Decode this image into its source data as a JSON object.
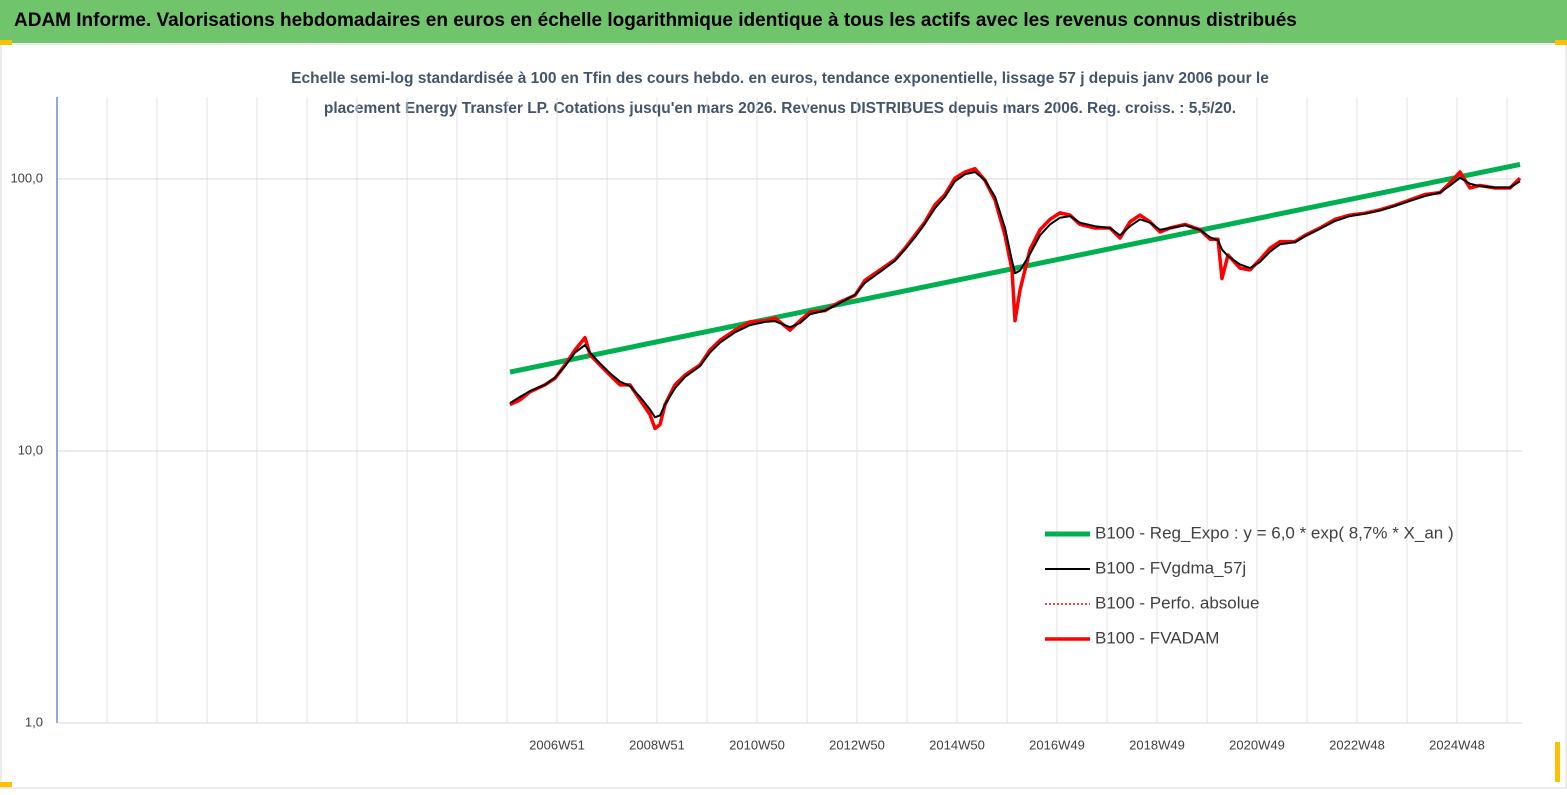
{
  "page_title": "ADAM Informe. Valorisations hebdomadaires en euros en échelle logarithmique identique à tous les actifs avec les revenus connus distribués",
  "chart_data": {
    "type": "line",
    "title": [
      "Echelle semi-log standardisée à 100 en Tfin des cours hebdo. en euros, tendance exponentielle, lissage 57 j depuis janv 2006 pour le",
      "placement Energy Transfer LP. Cotations jusqu'en mars 2026. Revenus DISTRIBUES depuis mars 2006. Reg. croiss. : 5,5/20."
    ],
    "log_y": true,
    "grid": true,
    "legend_position": "lower right",
    "xlim": [
      1996.97,
      2026.27
    ],
    "ylim": [
      1,
      200
    ],
    "yticks": [
      {
        "value": 1,
        "label": "1,0"
      },
      {
        "value": 10,
        "label": "10,0"
      },
      {
        "value": 100,
        "label": "100,0"
      }
    ],
    "xticks": [
      {
        "value": 2006.97,
        "label": "2006W51"
      },
      {
        "value": 2008.97,
        "label": "2008W51"
      },
      {
        "value": 2010.97,
        "label": "2010W50"
      },
      {
        "value": 2012.97,
        "label": "2012W50"
      },
      {
        "value": 2014.97,
        "label": "2014W50"
      },
      {
        "value": 2016.97,
        "label": "2016W49"
      },
      {
        "value": 2018.97,
        "label": "2018W49"
      },
      {
        "value": 2020.97,
        "label": "2020W49"
      },
      {
        "value": 2022.97,
        "label": "2022W48"
      },
      {
        "value": 2024.97,
        "label": "2024W48"
      }
    ],
    "x": [
      2006.03,
      2006.23,
      2006.43,
      2006.73,
      2006.93,
      2007.13,
      2007.33,
      2007.53,
      2007.63,
      2007.83,
      2008.03,
      2008.23,
      2008.43,
      2008.63,
      2008.83,
      2008.93,
      2009.03,
      2009.13,
      2009.33,
      2009.53,
      2009.83,
      2010.03,
      2010.23,
      2010.53,
      2010.83,
      2011.13,
      2011.33,
      2011.63,
      2011.83,
      2012.03,
      2012.33,
      2012.63,
      2012.93,
      2013.13,
      2013.43,
      2013.73,
      2013.93,
      2014.13,
      2014.33,
      2014.53,
      2014.73,
      2014.93,
      2015.13,
      2015.33,
      2015.53,
      2015.73,
      2015.93,
      2016.07,
      2016.13,
      2016.23,
      2016.43,
      2016.63,
      2016.83,
      2017.03,
      2017.23,
      2017.43,
      2017.73,
      2018.03,
      2018.23,
      2018.43,
      2018.63,
      2018.83,
      2019.03,
      2019.23,
      2019.53,
      2019.83,
      2020.03,
      2020.19,
      2020.27,
      2020.39,
      2020.63,
      2020.83,
      2021.03,
      2021.23,
      2021.43,
      2021.73,
      2021.93,
      2022.23,
      2022.53,
      2022.83,
      2023.13,
      2023.43,
      2023.73,
      2024.03,
      2024.33,
      2024.63,
      2024.83,
      2025.03,
      2025.23,
      2025.43,
      2025.73,
      2026.03,
      2026.23
    ],
    "series": [
      {
        "name": "B100 - Reg_Expo : y = 6,0 *  exp( 8,7% *  X_an )",
        "color": "#00b050",
        "width": 5,
        "style": "solid",
        "x": [
          2006.03,
          2026.23
        ],
        "values": [
          19.5,
          113
        ]
      },
      {
        "name": "B100 - FVgdma_57j",
        "color": "#000000",
        "width": 2,
        "style": "solid",
        "values": [
          15.0,
          15.8,
          16.6,
          17.5,
          18.6,
          20.5,
          23.0,
          24.5,
          23.0,
          21.0,
          19.3,
          18.0,
          17.3,
          15.8,
          14.2,
          13.3,
          13.5,
          14.8,
          17.0,
          18.7,
          20.5,
          23.0,
          25.0,
          27.3,
          29.0,
          29.8,
          30.0,
          28.5,
          29.5,
          31.8,
          32.8,
          35.0,
          37.5,
          41.5,
          45.5,
          50.0,
          55.0,
          61.0,
          68.5,
          78.0,
          86.0,
          98.0,
          104,
          106,
          99.0,
          86.0,
          66.0,
          50.0,
          45.0,
          46.0,
          53.0,
          62.0,
          68.0,
          72.0,
          73.0,
          69.0,
          67.0,
          66.0,
          62.0,
          67.0,
          71.0,
          69.0,
          65.0,
          66.0,
          67.5,
          65.0,
          61.0,
          59.5,
          55.0,
          52.0,
          48.5,
          47.0,
          49.5,
          54.0,
          57.5,
          58.5,
          61.5,
          65.5,
          70.0,
          73.0,
          74.5,
          76.5,
          79.5,
          83.0,
          86.5,
          89.0,
          94.5,
          101,
          96.0,
          94.0,
          93.0,
          93.0,
          98.0
        ]
      },
      {
        "name": "B100 - Perfo. absolue",
        "color": "#ff0000",
        "width": 1.5,
        "style": "dotted",
        "values": [
          14.8,
          15.4,
          16.5,
          17.5,
          18.5,
          20.7,
          23.5,
          26.1,
          22.6,
          20.7,
          19.0,
          17.5,
          17.5,
          15.4,
          13.6,
          12.1,
          12.5,
          14.8,
          17.5,
          19.0,
          20.7,
          23.5,
          25.5,
          27.8,
          29.8,
          30.1,
          30.8,
          27.8,
          30.1,
          32.4,
          32.8,
          35.3,
          37.3,
          42.4,
          46.3,
          50.5,
          55.6,
          62.1,
          69.5,
          80.3,
          87.6,
          100.7,
          106,
          109,
          98.7,
          83.7,
          62.1,
          46.3,
          30.1,
          39,
          55,
          65,
          71,
          75,
          73.6,
          68,
          66,
          66,
          60.6,
          69.5,
          73.6,
          69.5,
          63.8,
          66,
          68,
          65,
          60,
          60,
          43,
          52.5,
          47,
          46.3,
          50.5,
          55.6,
          58.8,
          58.8,
          62,
          66,
          71,
          73.6,
          74.8,
          77,
          80,
          83.7,
          87.6,
          89,
          96.7,
          106,
          92.6,
          94.6,
          92.6,
          92.6,
          100.7
        ]
      },
      {
        "name": "B100 - FVADAM",
        "color": "#ff0000",
        "width": 3.5,
        "style": "solid",
        "values": [
          14.8,
          15.4,
          16.5,
          17.5,
          18.5,
          20.7,
          23.5,
          26.1,
          22.6,
          20.7,
          19.0,
          17.5,
          17.5,
          15.4,
          13.6,
          12.1,
          12.5,
          14.8,
          17.5,
          19.0,
          20.7,
          23.5,
          25.5,
          27.8,
          29.8,
          30.1,
          30.8,
          27.8,
          30.1,
          32.4,
          32.8,
          35.3,
          37.3,
          42.4,
          46.3,
          50.5,
          55.6,
          62.1,
          69.5,
          80.3,
          87.6,
          100.7,
          106,
          109,
          98.7,
          83.7,
          62.1,
          46.3,
          30.1,
          39,
          55,
          65,
          71,
          75,
          73.6,
          68,
          66,
          66,
          60.6,
          69.5,
          73.6,
          69.5,
          63.8,
          66,
          68,
          65,
          60,
          60,
          43,
          52.5,
          47,
          46.3,
          50.5,
          55.6,
          58.8,
          58.8,
          62,
          66,
          71,
          73.6,
          74.8,
          77,
          80,
          83.7,
          87.6,
          89,
          96.7,
          106,
          92.6,
          94.6,
          92.6,
          92.6,
          100.7
        ]
      }
    ]
  }
}
